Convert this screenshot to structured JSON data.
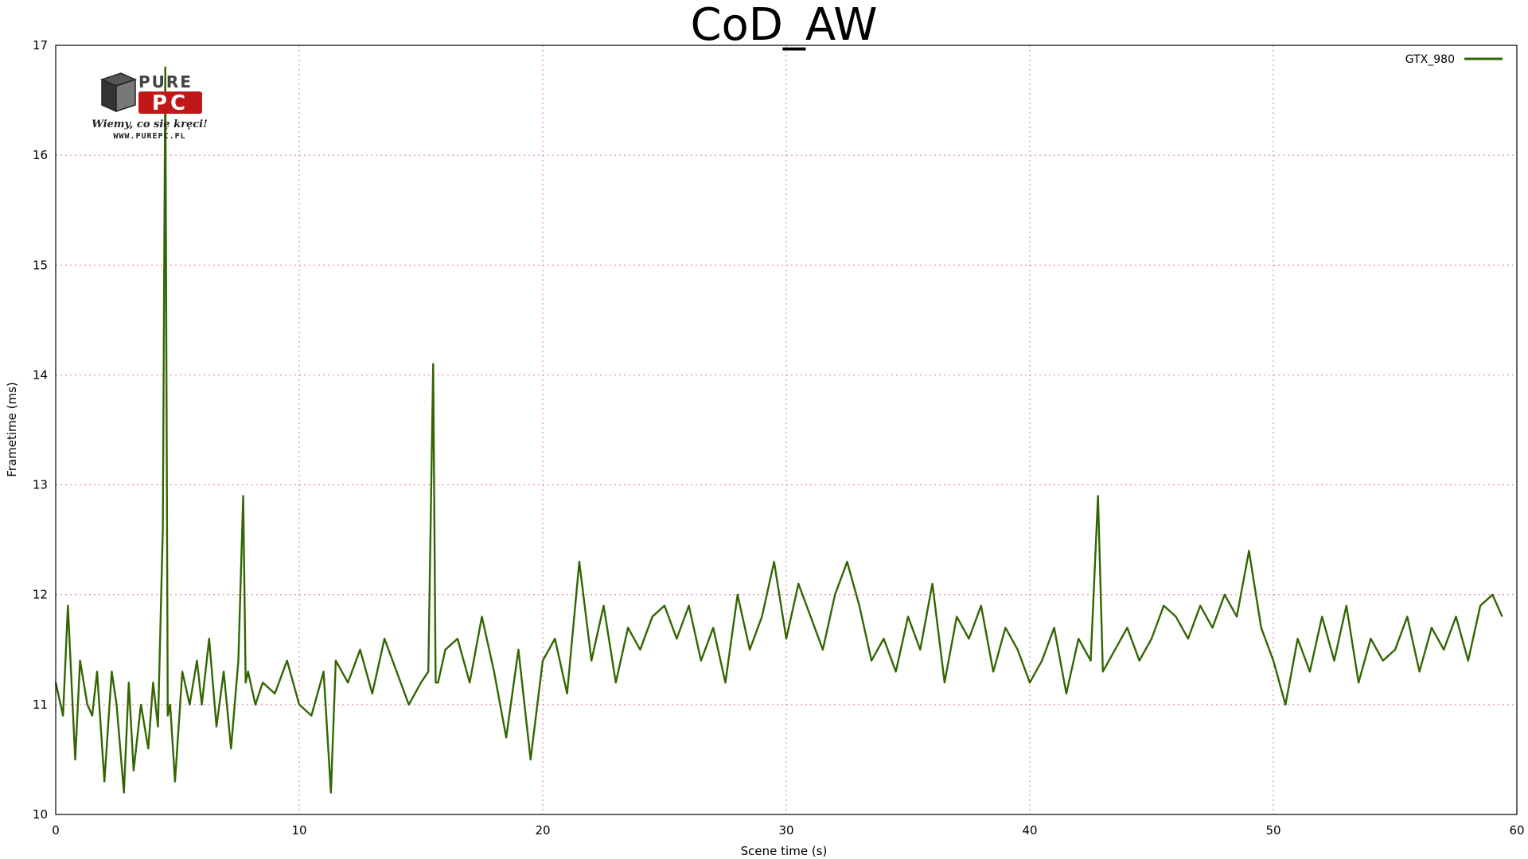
{
  "colors": {
    "series": "#336600",
    "grid": "#e07a9a"
  },
  "logo": {
    "icon": "purepc-logo",
    "text": "PURE PC Wiemy, co się kręci! www.purepc.pl"
  },
  "chart_data": {
    "type": "line",
    "title": "CoD_AW",
    "xlabel": "Scene time (s)",
    "ylabel": "Frametime (ms)",
    "xlim": [
      0,
      60
    ],
    "ylim": [
      10,
      17
    ],
    "xticks": [
      "0",
      "10",
      "20",
      "30",
      "40",
      "50",
      "60"
    ],
    "yticks": [
      "10",
      "11",
      "12",
      "13",
      "14",
      "15",
      "16",
      "17"
    ],
    "grid": true,
    "legend_position": "top-right",
    "series": [
      {
        "name": "GTX_980",
        "color": "#336600",
        "x": [
          0,
          0.3,
          0.5,
          0.8,
          1.0,
          1.3,
          1.5,
          1.7,
          2.0,
          2.3,
          2.5,
          2.8,
          3.0,
          3.2,
          3.5,
          3.8,
          4.0,
          4.2,
          4.4,
          4.5,
          4.6,
          4.7,
          4.9,
          5.2,
          5.5,
          5.8,
          6.0,
          6.3,
          6.6,
          6.9,
          7.2,
          7.5,
          7.7,
          7.8,
          7.9,
          8.2,
          8.5,
          9.0,
          9.5,
          10.0,
          10.5,
          11.0,
          11.3,
          11.5,
          12.0,
          12.5,
          13.0,
          13.5,
          14.0,
          14.5,
          15.0,
          15.3,
          15.5,
          15.6,
          15.7,
          16.0,
          16.5,
          17.0,
          17.5,
          18.0,
          18.5,
          19.0,
          19.5,
          20.0,
          20.5,
          21.0,
          21.5,
          22.0,
          22.5,
          23.0,
          23.5,
          24.0,
          24.5,
          25.0,
          25.5,
          26.0,
          26.5,
          27.0,
          27.5,
          28.0,
          28.5,
          29.0,
          29.5,
          30.0,
          30.5,
          31.0,
          31.5,
          32.0,
          32.5,
          33.0,
          33.5,
          34.0,
          34.5,
          35.0,
          35.5,
          36.0,
          36.5,
          37.0,
          37.5,
          38.0,
          38.5,
          39.0,
          39.5,
          40.0,
          40.5,
          41.0,
          41.5,
          42.0,
          42.5,
          42.8,
          43.0,
          43.5,
          44.0,
          44.5,
          45.0,
          45.5,
          46.0,
          46.5,
          47.0,
          47.5,
          48.0,
          48.5,
          49.0,
          49.5,
          50.0,
          50.5,
          51.0,
          51.5,
          52.0,
          52.5,
          53.0,
          53.5,
          54.0,
          54.5,
          55.0,
          55.5,
          56.0,
          56.5,
          57.0,
          57.5,
          58.0,
          58.5,
          59.0,
          59.4
        ],
        "y": [
          11.2,
          10.9,
          11.9,
          10.5,
          11.4,
          11.0,
          10.9,
          11.3,
          10.3,
          11.3,
          11.0,
          10.2,
          11.2,
          10.4,
          11.0,
          10.6,
          11.2,
          10.8,
          12.6,
          16.8,
          10.9,
          11.0,
          10.3,
          11.3,
          11.0,
          11.4,
          11.0,
          11.6,
          10.8,
          11.3,
          10.6,
          11.4,
          12.9,
          11.2,
          11.3,
          11.0,
          11.2,
          11.1,
          11.4,
          11.0,
          10.9,
          11.3,
          10.2,
          11.4,
          11.2,
          11.5,
          11.1,
          11.6,
          11.3,
          11.0,
          11.2,
          11.3,
          14.1,
          11.2,
          11.2,
          11.5,
          11.6,
          11.2,
          11.8,
          11.3,
          10.7,
          11.5,
          10.5,
          11.4,
          11.6,
          11.1,
          12.3,
          11.4,
          11.9,
          11.2,
          11.7,
          11.5,
          11.8,
          11.9,
          11.6,
          11.9,
          11.4,
          11.7,
          11.2,
          12.0,
          11.5,
          11.8,
          12.3,
          11.6,
          12.1,
          11.8,
          11.5,
          12.0,
          12.3,
          11.9,
          11.4,
          11.6,
          11.3,
          11.8,
          11.5,
          12.1,
          11.2,
          11.8,
          11.6,
          11.9,
          11.3,
          11.7,
          11.5,
          11.2,
          11.4,
          11.7,
          11.1,
          11.6,
          11.4,
          12.9,
          11.3,
          11.5,
          11.7,
          11.4,
          11.6,
          11.9,
          11.8,
          11.6,
          11.9,
          11.7,
          12.0,
          11.8,
          12.4,
          11.7,
          11.4,
          11.0,
          11.6,
          11.3,
          11.8,
          11.4,
          11.9,
          11.2,
          11.6,
          11.4,
          11.5,
          11.8,
          11.3,
          11.7,
          11.5,
          11.8,
          11.4,
          11.9,
          12.0,
          11.8
        ]
      }
    ]
  }
}
